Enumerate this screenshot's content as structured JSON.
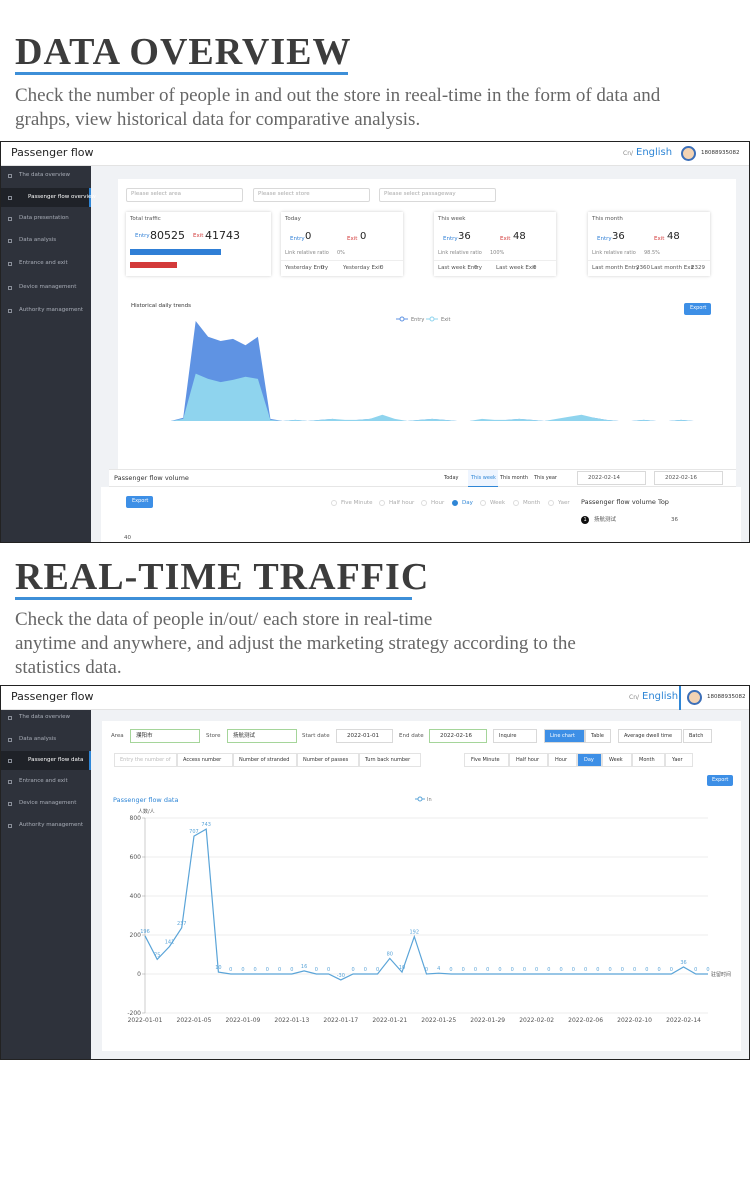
{
  "sections": [
    {
      "title": "DATA OVERVIEW",
      "description": "Check the number of people in and out the store in reeal-time in the form of data and grahps,  view historical data for comparative analysis."
    },
    {
      "title": "REAL-TIME TRAFFIC",
      "description_lines": [
        "Check the data of people in/out/ each store in real-time",
        "anytime and anywhere, and adjust the marketing strategy according to the",
        "statistics data."
      ]
    }
  ],
  "screen1": {
    "app_title": "Passenger flow",
    "lang": [
      "Cn/",
      "English"
    ],
    "user": "18088935082",
    "menu": [
      "The data overview",
      "Passenger flow overview",
      "Data presentation",
      "Data analysis",
      "Entrance and exit",
      "Device management",
      "Authority management"
    ],
    "selects": [
      "Please select area",
      "Please select store",
      "Please select passageway"
    ],
    "total": {
      "label": "Total traffic",
      "entry_label": "Entry",
      "entry": 80525,
      "exit_label": "Exit",
      "exit": 41743,
      "entry_color": "#2f7fd6",
      "exit_color": "#d33a3a"
    },
    "cards": [
      {
        "label": "Today",
        "entry": 0,
        "exit": 0,
        "ratio_label": "Link relative ratio",
        "ratio": "0%",
        "prev_entry_label": "Yesterday Entry",
        "prev_entry": 0,
        "prev_exit_label": "Yesterday Exit",
        "prev_exit": 0
      },
      {
        "label": "This week",
        "entry": 36,
        "exit": 48,
        "ratio_label": "Link relative ratio",
        "ratio": "100%",
        "prev_entry_label": "Last week Entry",
        "prev_entry": 0,
        "prev_exit_label": "Last week Exit",
        "prev_exit": 0
      },
      {
        "label": "This month",
        "entry": 36,
        "exit": 48,
        "ratio_label": "Link relative ratio",
        "ratio": "98.5%",
        "prev_entry_label": "Last month Entry",
        "prev_entry": 2360,
        "prev_exit_label": "Last month Exit",
        "prev_exit": 2329
      }
    ],
    "trend": {
      "type": "area",
      "title": "Historical daily trends",
      "export": "Export",
      "series": [
        {
          "name": "Entry",
          "color": "#5f93e3",
          "values": [
            0,
            0,
            0,
            0,
            0,
            3,
            95,
            80,
            76,
            78,
            72,
            80,
            2,
            0,
            1,
            0,
            1,
            2,
            0,
            1,
            2,
            4,
            1,
            0,
            1,
            2,
            1,
            0,
            0,
            1,
            0,
            1,
            2,
            1,
            0,
            1,
            2,
            4,
            3,
            1,
            0,
            0,
            1,
            0,
            0,
            1,
            0,
            0
          ]
        },
        {
          "name": "Exit",
          "color": "#8fd4ee",
          "values": [
            0,
            0,
            0,
            0,
            0,
            2,
            45,
            40,
            37,
            39,
            42,
            40,
            1,
            0,
            1,
            0,
            1,
            2,
            1,
            1,
            2,
            6,
            2,
            0,
            1,
            2,
            1,
            0,
            0,
            2,
            1,
            1,
            2,
            1,
            0,
            2,
            4,
            6,
            3,
            1,
            0,
            0,
            1,
            0,
            0,
            1,
            0,
            0
          ]
        }
      ]
    },
    "volume": {
      "title": "Passenger flow volume",
      "tabs": [
        "Today",
        "This week",
        "This month",
        "This year"
      ],
      "dates": [
        "2022-02-14",
        "2022-02-16"
      ],
      "export": "Export",
      "granularity": [
        "Five Minute",
        "Half hour",
        "Hour",
        "Day",
        "Week",
        "Month",
        "Yaer"
      ],
      "top_title": "Passenger flow volume Top",
      "top": [
        {
          "rank": 1,
          "name": "扬航测试",
          "value": 36
        }
      ],
      "axis_tick": 40
    }
  },
  "screen2": {
    "app_title": "Passenger flow",
    "lang": [
      "Cn/",
      "English"
    ],
    "user": "18088935082",
    "menu": [
      "The data overview",
      "Data analysis",
      "Passenger flow data",
      "Entrance and exit",
      "Device management",
      "Authority management"
    ],
    "filters": {
      "area_label": "Area",
      "area": "濮阳市",
      "store_label": "Store",
      "store": "扬航测试",
      "start_label": "Start date",
      "start": "2022-01-01",
      "end_label": "End date",
      "end": "2022-02-16",
      "inquire": "Inquire",
      "line_chart": "Line chart",
      "table": "Table",
      "dwell": "Average dwell time",
      "batch": "Batch"
    },
    "metrics": [
      "Entry the number of",
      "Access number",
      "Number of stranded",
      "Number of passes",
      "Turn back number"
    ],
    "granularity": [
      "Five Minute",
      "Half hour",
      "Hour",
      "Day",
      "Week",
      "Month",
      "Yaer"
    ],
    "export": "Export",
    "chart": {
      "type": "line",
      "title": "Passenger flow data",
      "y_label": "人数/人",
      "x_label": "驻留时间",
      "categories": [
        "2022-01-01",
        null,
        null,
        null,
        "2022-01-05",
        null,
        null,
        null,
        "2022-01-09",
        null,
        null,
        null,
        "2022-01-13",
        null,
        null,
        null,
        "2022-01-17",
        null,
        null,
        null,
        "2022-01-21",
        null,
        null,
        null,
        "2022-01-25",
        null,
        null,
        null,
        "2022-01-29",
        null,
        null,
        null,
        "2022-02-02",
        null,
        null,
        null,
        "2022-02-06",
        null,
        null,
        null,
        "2022-02-10",
        null,
        null,
        null,
        "2022-02-14",
        null,
        null
      ],
      "series": [
        {
          "name": "In",
          "color": "#5aa4d8",
          "values": [
            196,
            75,
            141,
            237,
            707,
            743,
            10,
            0,
            0,
            0,
            0,
            0,
            0,
            16,
            0,
            0,
            -30,
            0,
            0,
            0,
            80,
            10,
            192,
            0,
            4,
            0,
            0,
            0,
            0,
            0,
            0,
            0,
            0,
            0,
            0,
            0,
            0,
            0,
            0,
            0,
            0,
            0,
            0,
            0,
            36,
            0,
            0
          ]
        }
      ],
      "ylim": [
        -200,
        800
      ],
      "yticks": [
        -200,
        0,
        200,
        400,
        600,
        800
      ],
      "grid": true
    }
  }
}
